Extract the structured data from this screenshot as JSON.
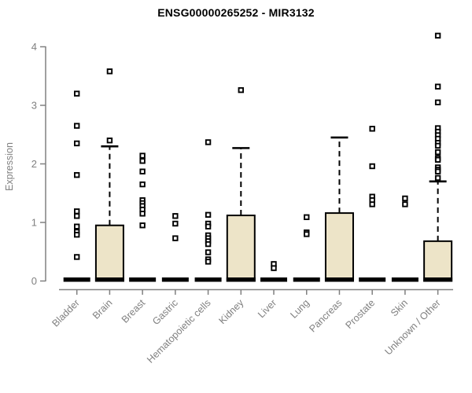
{
  "chart_data": {
    "type": "boxplot",
    "title": "ENSG00000265252 - MIR3132",
    "ylabel": "Expression",
    "xlabel": "",
    "ylim": [
      0,
      4
    ],
    "ytick_labels": [
      "0",
      "1",
      "2",
      "3",
      "4"
    ],
    "ytick_values": [
      0,
      1,
      2,
      3,
      4
    ],
    "grid": "off",
    "legend": "none",
    "categories": [
      "Bladder",
      "Brain",
      "Breast",
      "Gastric",
      "Hematopoietic cells",
      "Kidney",
      "Liver",
      "Lung",
      "Pancreas",
      "Prostate",
      "Skin",
      "Unknown / Other"
    ],
    "boxes": [
      {
        "category": "Bladder",
        "q1": 0,
        "median": 0,
        "q3": 0,
        "whisker_low": 0,
        "whisker_high": 0,
        "outliers": [
          3.2,
          2.65,
          2.35,
          1.81,
          1.19,
          1.11,
          0.93,
          0.84,
          0.79,
          0.41
        ]
      },
      {
        "category": "Brain",
        "q1": 0,
        "median": 0,
        "q3": 0.95,
        "whisker_low": 0,
        "whisker_high": 2.3,
        "outliers": [
          3.58,
          2.4
        ]
      },
      {
        "category": "Breast",
        "q1": 0,
        "median": 0,
        "q3": 0,
        "whisker_low": 0,
        "whisker_high": 0,
        "outliers": [
          2.14,
          2.05,
          1.87,
          1.65,
          1.38,
          1.33,
          1.28,
          1.22,
          1.15,
          0.95
        ]
      },
      {
        "category": "Gastric",
        "q1": 0,
        "median": 0,
        "q3": 0,
        "whisker_low": 0,
        "whisker_high": 0,
        "outliers": [
          1.11,
          0.98,
          0.73
        ]
      },
      {
        "category": "Hematopoietic cells",
        "q1": 0,
        "median": 0,
        "q3": 0,
        "whisker_low": 0,
        "whisker_high": 0,
        "outliers": [
          2.37,
          1.13,
          0.98,
          0.93,
          0.78,
          0.73,
          0.68,
          0.63,
          0.49,
          0.37,
          0.33
        ]
      },
      {
        "category": "Kidney",
        "q1": 0,
        "median": 0,
        "q3": 1.12,
        "whisker_low": 0,
        "whisker_high": 2.27,
        "outliers": [
          3.26
        ]
      },
      {
        "category": "Liver",
        "q1": 0,
        "median": 0,
        "q3": 0,
        "whisker_low": 0,
        "whisker_high": 0,
        "outliers": [
          0.29,
          0.22
        ]
      },
      {
        "category": "Lung",
        "q1": 0,
        "median": 0,
        "q3": 0,
        "whisker_low": 0,
        "whisker_high": 0,
        "outliers": [
          1.09,
          0.83,
          0.8
        ]
      },
      {
        "category": "Pancreas",
        "q1": 0,
        "median": 0,
        "q3": 1.16,
        "whisker_low": 0,
        "whisker_high": 2.45,
        "outliers": []
      },
      {
        "category": "Prostate",
        "q1": 0,
        "median": 0,
        "q3": 0,
        "whisker_low": 0,
        "whisker_high": 0,
        "outliers": [
          2.6,
          1.96,
          1.44,
          1.38,
          1.31
        ]
      },
      {
        "category": "Skin",
        "q1": 0,
        "median": 0,
        "q3": 0,
        "whisker_low": 0,
        "whisker_high": 0,
        "outliers": [
          1.41,
          1.31
        ]
      },
      {
        "category": "Unknown / Other",
        "q1": 0,
        "median": 0,
        "q3": 0.68,
        "whisker_low": 0,
        "whisker_high": 1.7,
        "outliers": [
          4.19,
          3.32,
          3.05,
          2.61,
          2.55,
          2.49,
          2.43,
          2.36,
          2.31,
          2.2,
          2.1,
          2.07,
          1.94,
          1.9,
          1.87,
          1.76
        ]
      }
    ],
    "colors": {
      "box_fill": "#EDE4C8",
      "box_border": "#000000",
      "whisker": "#000000",
      "outlier": "#000000",
      "axis": "#808080",
      "tick_label": "#808080",
      "title": "#000000",
      "background": "#FFFFFF"
    }
  }
}
